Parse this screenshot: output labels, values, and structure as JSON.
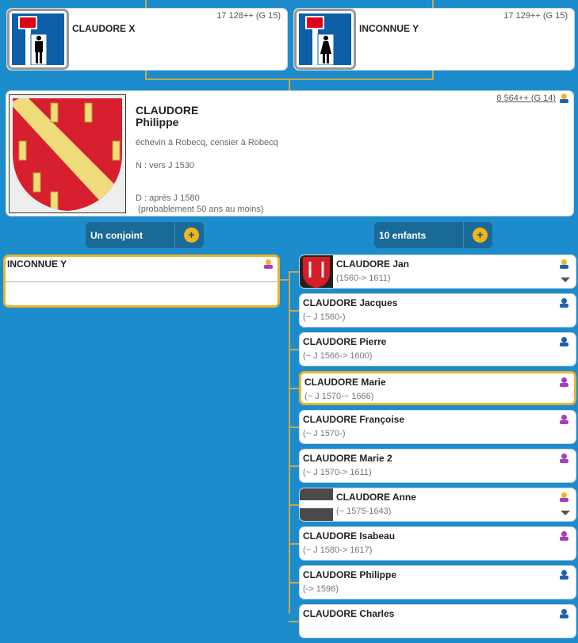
{
  "parents": [
    {
      "name": "CLAUDORE X",
      "sosa": "17 128++ (G 15)",
      "sex": "male"
    },
    {
      "name": "INCONNUE Y",
      "sosa": "17 129++ (G 15)",
      "sex": "female"
    }
  ],
  "main": {
    "surname": "CLAUDORE",
    "firstname": "Philippe",
    "occupation": "échevin à Robecq, censier à Robecq",
    "birth": "N : vers J 1530",
    "death": "D : après J 1580",
    "age": " (probablement 50 ans au moins)",
    "sosa": "8 564++ (G 14)"
  },
  "buttons": {
    "spouses": "Un conjoint",
    "children": "10 enfants",
    "plus": "+"
  },
  "spouse": {
    "name": "INCONNUE Y"
  },
  "children": [
    {
      "name": "CLAUDORE Jan",
      "dates": "(1560-> 1611)",
      "sex": "m",
      "sosa": true,
      "image": "coat"
    },
    {
      "name": "CLAUDORE Jacques",
      "dates": "(~ J 1560-)",
      "sex": "m"
    },
    {
      "name": "CLAUDORE Pierre",
      "dates": "(~ J 1566-> 1600)",
      "sex": "m"
    },
    {
      "name": "CLAUDORE Marie",
      "dates": "(~ J 1570-~ 1666)",
      "sex": "f",
      "highlight": true
    },
    {
      "name": "CLAUDORE Françoise",
      "dates": "(~ J 1570-)",
      "sex": "f"
    },
    {
      "name": "CLAUDORE Marie 2",
      "dates": "(~ J 1570-> 1611)",
      "sex": "f"
    },
    {
      "name": "CLAUDORE Anne",
      "dates": "(~ 1575-1643)",
      "sex": "f",
      "sosa": true,
      "image": "signature"
    },
    {
      "name": "CLAUDORE Isabeau",
      "dates": "(~ J 1580-> 1617)",
      "sex": "f"
    },
    {
      "name": "CLAUDORE Philippe",
      "dates": "(-> 1596)",
      "sex": "m"
    },
    {
      "name": "CLAUDORE Charles",
      "dates": "",
      "sex": "m"
    }
  ],
  "colors": {
    "background": "#1c8ccd",
    "connector": "#c9a94a",
    "male": "#1f5fb0",
    "female": "#a93cb8",
    "sosa_head": "#f1b51c"
  }
}
